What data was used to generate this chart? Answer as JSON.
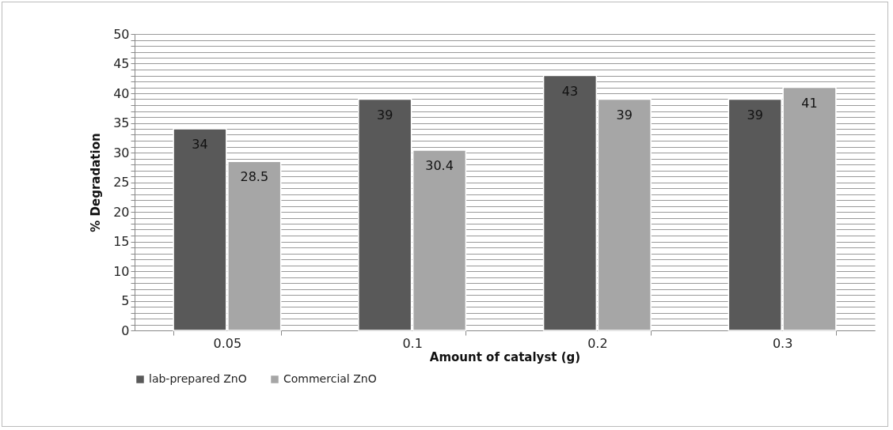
{
  "chart_data": {
    "type": "bar",
    "xlabel": "Amount of catalyst (g)",
    "ylabel": "% Degradation",
    "categories": [
      "0.05",
      "0.1",
      "0.2",
      "0.3"
    ],
    "series": [
      {
        "name": "lab-prepared ZnO",
        "color": "#595959",
        "values": [
          34,
          39,
          43,
          39
        ]
      },
      {
        "name": "Commercial ZnO",
        "color": "#a6a6a6",
        "values": [
          28.5,
          30.4,
          39,
          41
        ]
      }
    ],
    "ylim": [
      0,
      50
    ],
    "yticks": [
      0,
      {
        "value": 1,
        "label": null
      },
      {
        "value": 2,
        "label": null
      },
      {
        "value": 3,
        "label": null
      },
      {
        "value": 4,
        "label": null
      },
      5,
      {
        "value": 6,
        "label": null
      },
      {
        "value": 7,
        "label": null
      },
      {
        "value": 8,
        "label": null
      },
      {
        "value": 9,
        "label": null
      },
      10,
      {
        "value": 11,
        "label": null
      },
      {
        "value": 12,
        "label": null
      },
      {
        "value": 13,
        "label": null
      },
      {
        "value": 14,
        "label": null
      },
      15,
      {
        "value": 16,
        "label": null
      },
      {
        "value": 17,
        "label": null
      },
      {
        "value": 18,
        "label": null
      },
      {
        "value": 19,
        "label": null
      },
      20,
      {
        "value": 21,
        "label": null
      },
      {
        "value": 22,
        "label": null
      },
      {
        "value": 23,
        "label": null
      },
      {
        "value": 24,
        "label": null
      },
      25,
      {
        "value": 26,
        "label": null
      },
      {
        "value": 27,
        "label": null
      },
      {
        "value": 28,
        "label": null
      },
      {
        "value": 29,
        "label": null
      },
      30,
      {
        "value": 31,
        "label": null
      },
      {
        "value": 32,
        "label": null
      },
      {
        "value": 33,
        "label": null
      },
      {
        "value": 34,
        "label": null
      },
      35,
      {
        "value": 36,
        "label": null
      },
      {
        "value": 37,
        "label": null
      },
      {
        "value": 38,
        "label": null
      },
      {
        "value": 39,
        "label": null
      },
      40,
      {
        "value": 41,
        "label": null
      },
      {
        "value": 42,
        "label": null
      },
      {
        "value": 43,
        "label": null
      },
      {
        "value": 44,
        "label": null
      },
      45,
      {
        "value": 46,
        "label": null
      },
      {
        "value": 47,
        "label": null
      },
      {
        "value": 48,
        "label": null
      },
      {
        "value": 49,
        "label": null
      },
      50
    ],
    "grid": "y",
    "legend": "bottom",
    "data_labels": true
  }
}
